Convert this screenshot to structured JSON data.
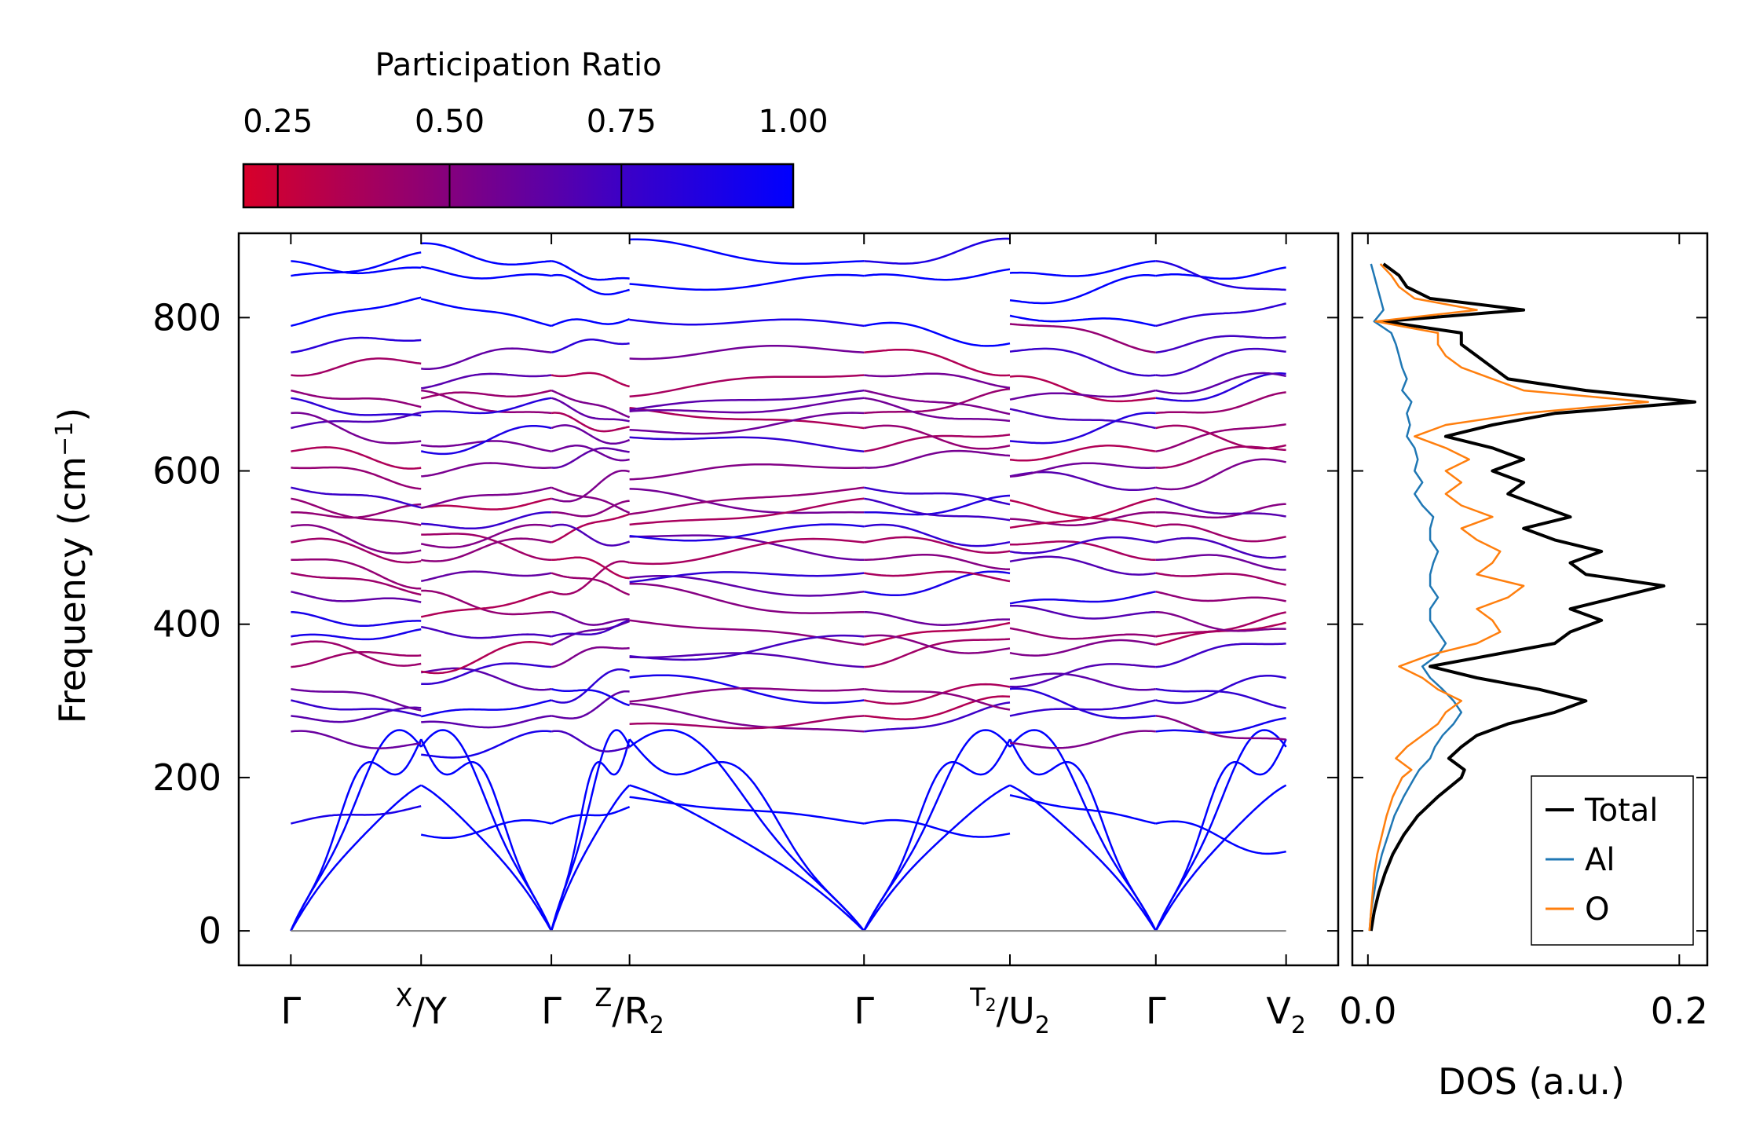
{
  "colors": {
    "low": "#d8002a",
    "high": "#0000ff",
    "total": "#000000",
    "al": "#1f77b4",
    "o": "#ff7f0e",
    "zero_line": "#808080"
  },
  "chart_data": [
    {
      "type": "line",
      "subtype": "phonon-band-structure",
      "ylabel": "Frequency (cm⁻¹)",
      "ylabel_text": "Frequency (cm",
      "ylabel_sup": "−1",
      "ylabel_close": ")",
      "ylim": [
        -45,
        910
      ],
      "yticks": [
        0,
        200,
        400,
        600,
        800
      ],
      "x_segments": [
        {
          "from": "Γ",
          "to": "X",
          "x_range": [
            0,
            1
          ]
        },
        {
          "from": "Y",
          "to": "Γ",
          "x_range": [
            1,
            2
          ]
        },
        {
          "from": "Γ",
          "to": "Z",
          "x_range": [
            2,
            2.6
          ]
        },
        {
          "from": "R₂",
          "to": "Γ",
          "x_range": [
            2.6,
            4.4
          ]
        },
        {
          "from": "Γ",
          "to": "T₂",
          "x_range": [
            4.4,
            5.52
          ]
        },
        {
          "from": "U₂",
          "to": "Γ",
          "x_range": [
            5.52,
            6.64
          ]
        },
        {
          "from": "Γ",
          "to": "V₂",
          "x_range": [
            6.64,
            7.64
          ]
        }
      ],
      "xticks": [
        {
          "x": 0,
          "label": "Γ"
        },
        {
          "x": 1,
          "sup": "X",
          "main": "/Y",
          "label": "X/Y"
        },
        {
          "x": 2,
          "label": "Γ"
        },
        {
          "x": 2.6,
          "sup": "Z",
          "main": "/R",
          "sub": "2",
          "label": "Z/R₂"
        },
        {
          "x": 4.4,
          "label": "Γ"
        },
        {
          "x": 5.52,
          "sup": "T",
          "supsub": "2",
          "main": "/U",
          "sub": "2",
          "label": "T₂/U₂"
        },
        {
          "x": 6.64,
          "label": "Γ"
        },
        {
          "x": 7.64,
          "main": "V",
          "sub": "2",
          "label": "V₂"
        }
      ],
      "xlim": [
        -0.4,
        8.04
      ],
      "acoustic_peak_frequencies": [
        190,
        240,
        250
      ],
      "gamma_optical_frequencies": [
        140,
        255,
        275,
        300,
        320,
        350,
        375,
        380,
        410,
        440,
        470,
        490,
        510,
        525,
        540,
        560,
        580,
        610,
        630,
        655,
        670,
        690,
        705,
        730,
        760,
        790,
        850,
        868
      ],
      "color_encoding": "participation ratio (red = 0.25 localized, blue = 1.00 delocalized)"
    },
    {
      "type": "line",
      "subtype": "density-of-states",
      "orientation": "horizontal",
      "xlabel": "DOS (a.u.)",
      "xlim": [
        -0.01,
        0.218
      ],
      "xticks": [
        0.0,
        0.2
      ],
      "xtick_labels": [
        "0.0",
        "0.2"
      ],
      "ylim": [
        -45,
        910
      ],
      "legend": {
        "position": "bottom-right",
        "entries": [
          "Total",
          "Al",
          "O"
        ]
      },
      "series": [
        {
          "name": "Total",
          "freq": [
            0,
            25,
            50,
            75,
            100,
            125,
            150,
            175,
            200,
            210,
            225,
            240,
            255,
            270,
            285,
            300,
            315,
            330,
            345,
            360,
            375,
            390,
            405,
            420,
            435,
            450,
            465,
            480,
            495,
            510,
            525,
            540,
            555,
            570,
            585,
            600,
            615,
            630,
            645,
            660,
            675,
            690,
            705,
            720,
            735,
            750,
            765,
            780,
            795,
            810,
            825,
            840,
            855,
            870
          ],
          "values": [
            0.002,
            0.004,
            0.007,
            0.011,
            0.016,
            0.023,
            0.032,
            0.045,
            0.06,
            0.062,
            0.052,
            0.06,
            0.07,
            0.09,
            0.12,
            0.14,
            0.11,
            0.07,
            0.04,
            0.08,
            0.12,
            0.13,
            0.15,
            0.13,
            0.16,
            0.19,
            0.14,
            0.13,
            0.15,
            0.12,
            0.1,
            0.13,
            0.11,
            0.09,
            0.1,
            0.08,
            0.1,
            0.08,
            0.05,
            0.08,
            0.12,
            0.21,
            0.14,
            0.09,
            0.08,
            0.07,
            0.06,
            0.06,
            0.01,
            0.1,
            0.04,
            0.025,
            0.02,
            0.01
          ]
        },
        {
          "name": "Al",
          "freq": [
            0,
            25,
            50,
            75,
            100,
            125,
            150,
            175,
            200,
            210,
            225,
            240,
            255,
            270,
            285,
            300,
            315,
            330,
            345,
            360,
            375,
            390,
            405,
            420,
            435,
            450,
            465,
            480,
            495,
            510,
            525,
            540,
            555,
            570,
            585,
            600,
            615,
            630,
            645,
            660,
            675,
            690,
            705,
            720,
            735,
            750,
            765,
            780,
            795,
            810,
            825,
            840,
            855,
            870
          ],
          "values": [
            0.001,
            0.002,
            0.004,
            0.006,
            0.009,
            0.013,
            0.017,
            0.023,
            0.03,
            0.033,
            0.04,
            0.043,
            0.048,
            0.055,
            0.06,
            0.055,
            0.048,
            0.04,
            0.035,
            0.045,
            0.05,
            0.045,
            0.04,
            0.04,
            0.045,
            0.04,
            0.04,
            0.042,
            0.045,
            0.04,
            0.04,
            0.042,
            0.035,
            0.03,
            0.035,
            0.03,
            0.032,
            0.03,
            0.025,
            0.027,
            0.025,
            0.028,
            0.022,
            0.025,
            0.022,
            0.02,
            0.018,
            0.015,
            0.004,
            0.01,
            0.008,
            0.006,
            0.004,
            0.002
          ]
        },
        {
          "name": "O",
          "freq": [
            0,
            25,
            50,
            75,
            100,
            125,
            150,
            175,
            200,
            210,
            225,
            240,
            255,
            270,
            285,
            300,
            315,
            330,
            345,
            360,
            375,
            390,
            405,
            420,
            435,
            450,
            465,
            480,
            495,
            510,
            525,
            540,
            555,
            570,
            585,
            600,
            615,
            630,
            645,
            660,
            675,
            690,
            705,
            720,
            735,
            750,
            765,
            780,
            795,
            810,
            825,
            840,
            855,
            870
          ],
          "values": [
            0.001,
            0.002,
            0.003,
            0.004,
            0.006,
            0.009,
            0.012,
            0.016,
            0.022,
            0.028,
            0.018,
            0.025,
            0.035,
            0.045,
            0.05,
            0.06,
            0.045,
            0.035,
            0.02,
            0.04,
            0.07,
            0.085,
            0.08,
            0.07,
            0.09,
            0.1,
            0.07,
            0.08,
            0.085,
            0.07,
            0.06,
            0.08,
            0.06,
            0.05,
            0.06,
            0.05,
            0.065,
            0.05,
            0.03,
            0.05,
            0.1,
            0.18,
            0.1,
            0.08,
            0.06,
            0.05,
            0.045,
            0.045,
            0.005,
            0.07,
            0.03,
            0.02,
            0.015,
            0.008
          ]
        }
      ]
    },
    {
      "type": "heatmap",
      "subtype": "colorbar",
      "title": "Participation Ratio",
      "range": [
        0.2,
        1.0
      ],
      "ticks": [
        0.25,
        0.5,
        0.75,
        1.0
      ],
      "tick_labels": [
        "0.25",
        "0.50",
        "0.75",
        "1.00"
      ]
    }
  ]
}
